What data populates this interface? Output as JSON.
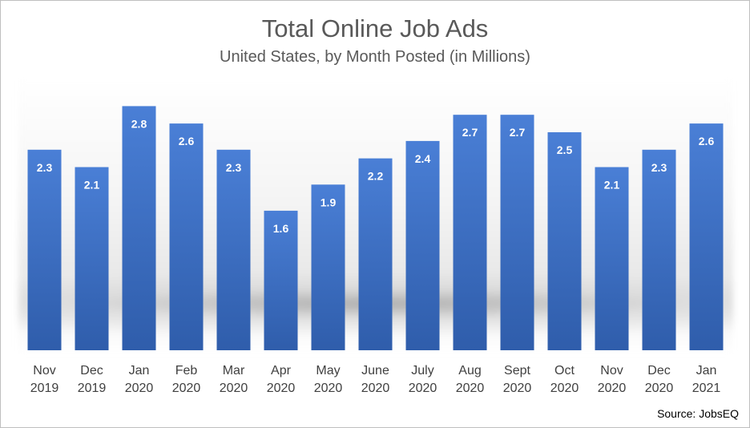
{
  "colors": {
    "bar_top": "#4a7fd6",
    "bar_bottom": "#2f5dab",
    "label_text": "#ffffff",
    "axis_text": "#404040",
    "title_text": "#595959"
  },
  "chart_data": {
    "type": "bar",
    "title": "Total Online Job Ads",
    "subtitle": "United States, by Month Posted (in Millions)",
    "categories": [
      [
        "Nov",
        "2019"
      ],
      [
        "Dec",
        "2019"
      ],
      [
        "Jan",
        "2020"
      ],
      [
        "Feb",
        "2020"
      ],
      [
        "Mar",
        "2020"
      ],
      [
        "Apr",
        "2020"
      ],
      [
        "May",
        "2020"
      ],
      [
        "June",
        "2020"
      ],
      [
        "July",
        "2020"
      ],
      [
        "Aug",
        "2020"
      ],
      [
        "Sept",
        "2020"
      ],
      [
        "Oct",
        "2020"
      ],
      [
        "Nov",
        "2020"
      ],
      [
        "Dec",
        "2020"
      ],
      [
        "Jan",
        "2021"
      ]
    ],
    "values": [
      2.3,
      2.1,
      2.8,
      2.6,
      2.3,
      1.6,
      1.9,
      2.2,
      2.4,
      2.7,
      2.7,
      2.5,
      2.1,
      2.3,
      2.6
    ],
    "data_labels": [
      "2.3",
      "2.1",
      "2.8",
      "2.6",
      "2.3",
      "1.6",
      "1.9",
      "2.2",
      "2.4",
      "2.7",
      "2.7",
      "2.5",
      "2.1",
      "2.3",
      "2.6"
    ],
    "ylim": [
      0,
      3.0
    ],
    "grid": false,
    "legend": "none",
    "xlabel": "",
    "ylabel": "",
    "source": "Source: JobsEQ"
  }
}
